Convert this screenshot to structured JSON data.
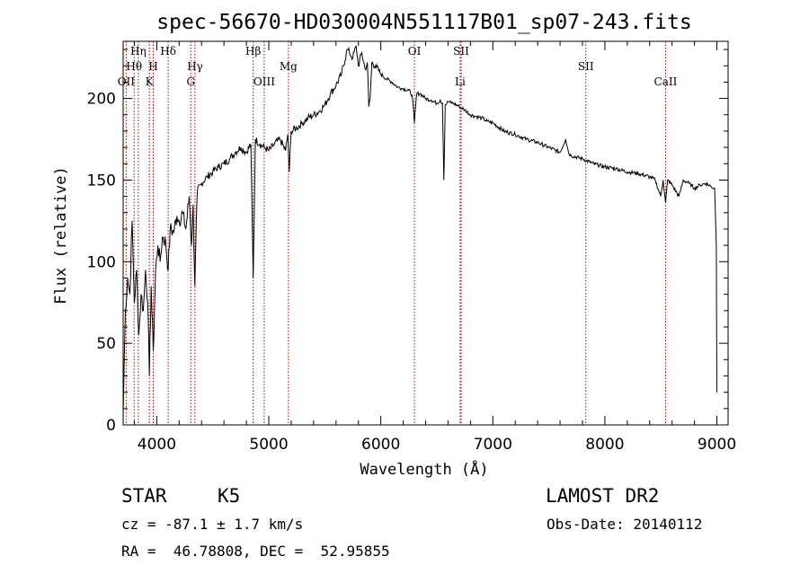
{
  "chart_data": {
    "type": "line",
    "title": "spec-56670-HD030004N551117B01_sp07-243.fits",
    "xlabel": "Wavelength (Å)",
    "ylabel": "Flux (relative)",
    "xlim": [
      3700,
      9100
    ],
    "ylim": [
      0,
      235
    ],
    "xticks": [
      4000,
      5000,
      6000,
      7000,
      8000,
      9000
    ],
    "yticks": [
      0,
      50,
      100,
      150,
      200
    ],
    "grid": false,
    "series": [
      {
        "x": [
          3700,
          3710,
          3720,
          3740,
          3760,
          3780,
          3800,
          3820,
          3840,
          3860,
          3880,
          3900,
          3920,
          3934,
          3950,
          3969,
          3990,
          4010,
          4030,
          4050,
          4080,
          4102,
          4120,
          4150,
          4180,
          4200,
          4230,
          4260,
          4290,
          4310,
          4325,
          4340,
          4360,
          4400,
          4450,
          4500,
          4550,
          4600,
          4650,
          4700,
          4750,
          4800,
          4840,
          4861,
          4880,
          4920,
          4960,
          5000,
          5050,
          5100,
          5150,
          5170,
          5183,
          5200,
          5250,
          5300,
          5350,
          5400,
          5450,
          5500,
          5550,
          5600,
          5650,
          5700,
          5720,
          5750,
          5780,
          5800,
          5830,
          5860,
          5880,
          5893,
          5905,
          5920,
          5950,
          6000,
          6050,
          6100,
          6150,
          6200,
          6250,
          6280,
          6300,
          6320,
          6350,
          6400,
          6450,
          6500,
          6530,
          6550,
          6563,
          6575,
          6600,
          6650,
          6700,
          6750,
          6800,
          6850,
          6900,
          6950,
          7000,
          7100,
          7200,
          7300,
          7400,
          7500,
          7600,
          7650,
          7680,
          7700,
          7800,
          7900,
          8000,
          8100,
          8200,
          8300,
          8400,
          8450,
          8498,
          8520,
          8542,
          8560,
          8600,
          8662,
          8700,
          8750,
          8800,
          8850,
          8900,
          8950,
          8980,
          8995,
          9000
        ],
        "y": [
          5,
          40,
          70,
          90,
          80,
          125,
          75,
          95,
          55,
          80,
          70,
          95,
          75,
          30,
          85,
          45,
          95,
          110,
          100,
          115,
          112,
          95,
          120,
          118,
          128,
          125,
          130,
          120,
          140,
          110,
          135,
          85,
          140,
          148,
          152,
          155,
          158,
          160,
          163,
          167,
          170,
          167,
          172,
          90,
          175,
          172,
          170,
          168,
          172,
          175,
          168,
          178,
          155,
          180,
          182,
          185,
          188,
          190,
          192,
          196,
          203,
          208,
          215,
          230,
          228,
          225,
          232,
          220,
          228,
          218,
          222,
          195,
          200,
          222,
          220,
          215,
          212,
          210,
          207,
          206,
          205,
          202,
          185,
          203,
          203,
          200,
          199,
          197,
          199,
          197,
          150,
          196,
          198,
          197,
          195,
          193,
          190,
          189,
          188,
          186,
          185,
          180,
          178,
          175,
          173,
          170,
          167,
          175,
          166,
          165,
          163,
          160,
          158,
          157,
          155,
          154,
          152,
          150,
          140,
          150,
          136,
          150,
          147,
          140,
          150,
          148,
          145,
          147,
          148,
          146,
          145,
          110,
          20
        ]
      }
    ],
    "lines": [
      {
        "label": "OII",
        "x": 3727,
        "row": 3
      },
      {
        "label": "Hθ",
        "x": 3798,
        "row": 2
      },
      {
        "label": "Hη",
        "x": 3835,
        "row": 1
      },
      {
        "label": "K",
        "x": 3934,
        "row": 3
      },
      {
        "label": "H",
        "x": 3969,
        "row": 2
      },
      {
        "label": "Hδ",
        "x": 4102,
        "row": 1
      },
      {
        "label": "G",
        "x": 4304,
        "row": 3
      },
      {
        "label": "Hγ",
        "x": 4341,
        "row": 2
      },
      {
        "label": "Hβ",
        "x": 4861,
        "row": 1
      },
      {
        "label": "OIII",
        "x": 4959,
        "row": 3
      },
      {
        "label": "Mg",
        "x": 5175,
        "row": 2
      },
      {
        "label": "OI",
        "x": 6300,
        "row": 1
      },
      {
        "label": "SII",
        "x": 6717,
        "row": 1
      },
      {
        "label": "Li",
        "x": 6708,
        "row": 3
      },
      {
        "label": "SII",
        "x": 7830,
        "row": 2
      },
      {
        "label": "CaII",
        "x": 8542,
        "row": 3
      }
    ]
  },
  "info": {
    "object_class": "STAR",
    "subclass": "K5",
    "survey": "LAMOST DR2",
    "redshift": "cz = -87.1 ± 1.7 km/s",
    "obs_date": "Obs-Date: 20140112",
    "coords": "RA =  46.78808, DEC =  52.95855"
  }
}
